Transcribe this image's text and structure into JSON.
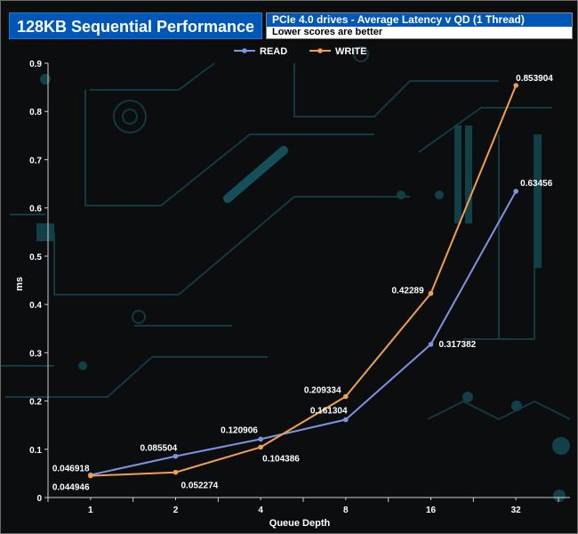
{
  "header": {
    "title": "128KB Sequential Performance",
    "subtitle": "PCIe 4.0 drives - Average Latency v QD (1 Thread)",
    "note": "Lower scores are better"
  },
  "chart_data": {
    "type": "line",
    "categories": [
      "1",
      "2",
      "4",
      "8",
      "16",
      "32"
    ],
    "series": [
      {
        "name": "READ",
        "color": "#7f94e0",
        "values": [
          0.046918,
          0.085504,
          0.120906,
          0.161304,
          0.317382,
          0.63456
        ]
      },
      {
        "name": "WRITE",
        "color": "#f0a050",
        "values": [
          0.044946,
          0.052274,
          0.104386,
          0.209334,
          0.42289,
          0.853904
        ]
      }
    ],
    "data_labels": {
      "READ": [
        "0.046918",
        "0.085504",
        "0.120906",
        "0.161304",
        "0.317382",
        "0.63456"
      ],
      "WRITE": [
        "0.044946",
        "0.052274",
        "0.104386",
        "0.209334",
        "0.42289",
        "0.853904"
      ]
    },
    "xlabel": "Queue Depth",
    "ylabel": "ms",
    "ylim": [
      0,
      0.9
    ],
    "yticks": [
      "0",
      "0.1",
      "0.2",
      "0.3",
      "0.4",
      "0.5",
      "0.6",
      "0.7",
      "0.8",
      "0.9"
    ],
    "legend_position": "top-center",
    "grid": false
  }
}
